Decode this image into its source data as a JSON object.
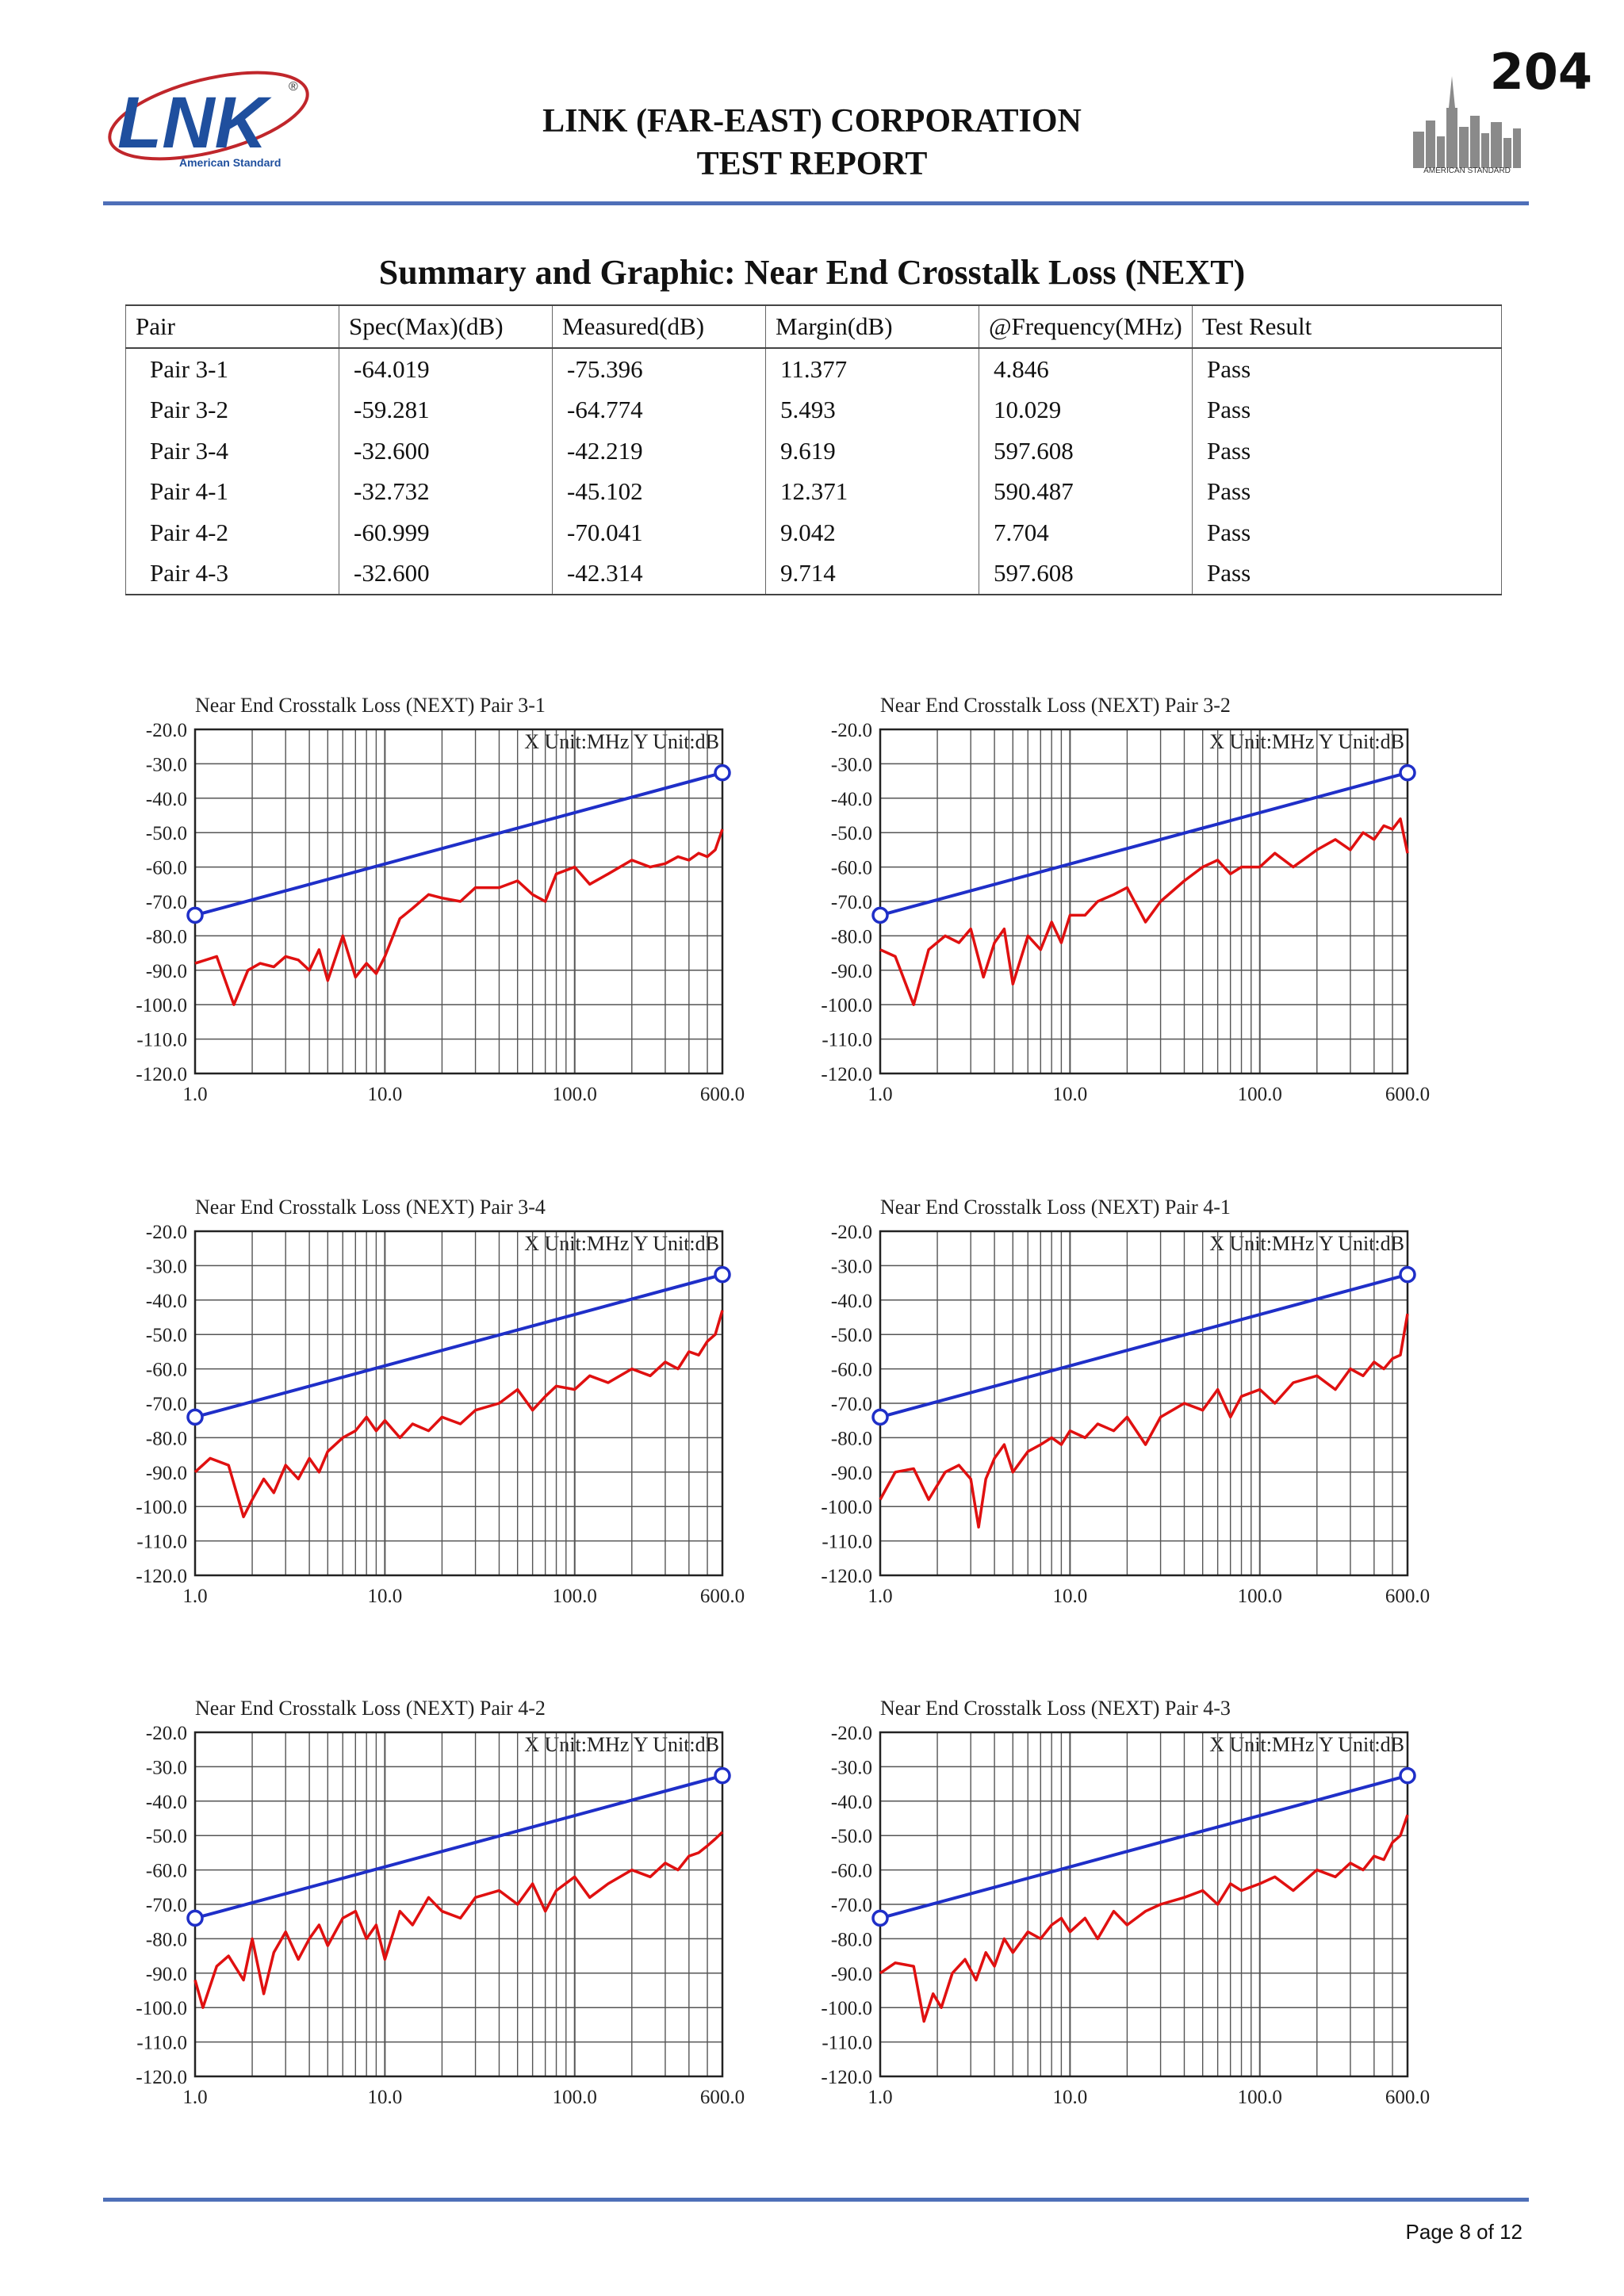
{
  "header": {
    "logo_text": "LNK",
    "logo_subtext": "American Standard",
    "company": "LINK (FAR-EAST) CORPORATION",
    "report": "TEST REPORT",
    "page_number": "204",
    "skyline_caption": "AMERICAN STANDARD"
  },
  "section_title": "Summary and Graphic: Near End Crosstalk Loss (NEXT)",
  "table": {
    "headers": [
      "Pair",
      "Spec(Max)(dB)",
      "Measured(dB)",
      "Margin(dB)",
      "@Frequency(MHz)",
      "Test Result"
    ],
    "rows": [
      [
        "Pair 3-1",
        "-64.019",
        "-75.396",
        "11.377",
        "4.846",
        "Pass"
      ],
      [
        "Pair 3-2",
        "-59.281",
        "-64.774",
        "5.493",
        "10.029",
        "Pass"
      ],
      [
        "Pair 3-4",
        "-32.600",
        "-42.219",
        "9.619",
        "597.608",
        "Pass"
      ],
      [
        "Pair 4-1",
        "-32.732",
        "-45.102",
        "12.371",
        "590.487",
        "Pass"
      ],
      [
        "Pair 4-2",
        "-60.999",
        "-70.041",
        "9.042",
        "7.704",
        "Pass"
      ],
      [
        "Pair 4-3",
        "-32.600",
        "-42.314",
        "9.714",
        "597.608",
        "Pass"
      ]
    ]
  },
  "chart_data": [
    {
      "type": "line",
      "title": "Near End Crosstalk Loss (NEXT) Pair 3-1",
      "unit_label": "X Unit:MHz Y Unit:dB",
      "x_ticks": [
        "1.0",
        "10.0",
        "100.0",
        "600.0"
      ],
      "y_ticks": [
        "-20.0",
        "-30.0",
        "-40.0",
        "-50.0",
        "-60.0",
        "-70.0",
        "-80.0",
        "-90.0",
        "-100.0",
        "-110.0",
        "-120.0"
      ],
      "xlim": [
        1,
        600
      ],
      "ylim": [
        -120,
        -20
      ],
      "x_scale": "log",
      "grid": true,
      "series": [
        {
          "color": "#1f2fc8",
          "x": [
            1,
            600
          ],
          "y": [
            -74,
            -32.6
          ]
        },
        {
          "color": "#e01010",
          "x": [
            1,
            1.3,
            1.6,
            1.9,
            2.2,
            2.6,
            3,
            3.5,
            4,
            4.5,
            5,
            6,
            7,
            8,
            9,
            10,
            12,
            14,
            17,
            20,
            25,
            30,
            40,
            50,
            60,
            70,
            80,
            100,
            120,
            150,
            200,
            250,
            300,
            350,
            400,
            450,
            500,
            550,
            600
          ],
          "y": [
            -88,
            -86,
            -100,
            -90,
            -88,
            -89,
            -86,
            -87,
            -90,
            -84,
            -93,
            -80,
            -92,
            -88,
            -91,
            -86,
            -75,
            -72,
            -68,
            -69,
            -70,
            -66,
            -66,
            -64,
            -68,
            -70,
            -62,
            -60,
            -65,
            -62,
            -58,
            -60,
            -59,
            -57,
            -58,
            -56,
            -57,
            -55,
            -49
          ]
        }
      ]
    },
    {
      "type": "line",
      "title": "Near End Crosstalk Loss (NEXT) Pair 3-2",
      "unit_label": "X Unit:MHz Y Unit:dB",
      "x_ticks": [
        "1.0",
        "10.0",
        "100.0",
        "600.0"
      ],
      "y_ticks": [
        "-20.0",
        "-30.0",
        "-40.0",
        "-50.0",
        "-60.0",
        "-70.0",
        "-80.0",
        "-90.0",
        "-100.0",
        "-110.0",
        "-120.0"
      ],
      "xlim": [
        1,
        600
      ],
      "ylim": [
        -120,
        -20
      ],
      "x_scale": "log",
      "grid": true,
      "series": [
        {
          "color": "#1f2fc8",
          "x": [
            1,
            600
          ],
          "y": [
            -74,
            -32.6
          ]
        },
        {
          "color": "#e01010",
          "x": [
            1,
            1.2,
            1.5,
            1.8,
            2.2,
            2.6,
            3,
            3.5,
            4,
            4.5,
            5,
            6,
            7,
            8,
            9,
            10,
            12,
            14,
            17,
            20,
            25,
            30,
            40,
            50,
            60,
            70,
            80,
            100,
            120,
            150,
            200,
            250,
            300,
            350,
            400,
            450,
            500,
            550,
            600
          ],
          "y": [
            -84,
            -86,
            -100,
            -84,
            -80,
            -82,
            -78,
            -92,
            -82,
            -78,
            -94,
            -80,
            -84,
            -76,
            -82,
            -74,
            -74,
            -70,
            -68,
            -66,
            -76,
            -70,
            -64,
            -60,
            -58,
            -62,
            -60,
            -60,
            -56,
            -60,
            -55,
            -52,
            -55,
            -50,
            -52,
            -48,
            -49,
            -46,
            -56
          ]
        }
      ]
    },
    {
      "type": "line",
      "title": "Near End Crosstalk Loss (NEXT) Pair 3-4",
      "unit_label": "X Unit:MHz Y Unit:dB",
      "x_ticks": [
        "1.0",
        "10.0",
        "100.0",
        "600.0"
      ],
      "y_ticks": [
        "-20.0",
        "-30.0",
        "-40.0",
        "-50.0",
        "-60.0",
        "-70.0",
        "-80.0",
        "-90.0",
        "-100.0",
        "-110.0",
        "-120.0"
      ],
      "xlim": [
        1,
        600
      ],
      "ylim": [
        -120,
        -20
      ],
      "x_scale": "log",
      "grid": true,
      "series": [
        {
          "color": "#1f2fc8",
          "x": [
            1,
            600
          ],
          "y": [
            -74,
            -32.6
          ]
        },
        {
          "color": "#e01010",
          "x": [
            1,
            1.2,
            1.5,
            1.8,
            2,
            2.3,
            2.6,
            3,
            3.5,
            4,
            4.5,
            5,
            6,
            7,
            8,
            9,
            10,
            12,
            14,
            17,
            20,
            25,
            30,
            40,
            50,
            60,
            70,
            80,
            100,
            120,
            150,
            200,
            250,
            300,
            350,
            400,
            450,
            500,
            550,
            600
          ],
          "y": [
            -90,
            -86,
            -88,
            -103,
            -98,
            -92,
            -96,
            -88,
            -92,
            -86,
            -90,
            -84,
            -80,
            -78,
            -74,
            -78,
            -75,
            -80,
            -76,
            -78,
            -74,
            -76,
            -72,
            -70,
            -66,
            -72,
            -68,
            -65,
            -66,
            -62,
            -64,
            -60,
            -62,
            -58,
            -60,
            -55,
            -56,
            -52,
            -50,
            -43
          ]
        }
      ]
    },
    {
      "type": "line",
      "title": "Near End Crosstalk Loss (NEXT) Pair 4-1",
      "unit_label": "X Unit:MHz Y Unit:dB",
      "x_ticks": [
        "1.0",
        "10.0",
        "100.0",
        "600.0"
      ],
      "y_ticks": [
        "-20.0",
        "-30.0",
        "-40.0",
        "-50.0",
        "-60.0",
        "-70.0",
        "-80.0",
        "-90.0",
        "-100.0",
        "-110.0",
        "-120.0"
      ],
      "xlim": [
        1,
        600
      ],
      "ylim": [
        -120,
        -20
      ],
      "x_scale": "log",
      "grid": true,
      "series": [
        {
          "color": "#1f2fc8",
          "x": [
            1,
            600
          ],
          "y": [
            -74,
            -32.6
          ]
        },
        {
          "color": "#e01010",
          "x": [
            1,
            1.2,
            1.5,
            1.8,
            2.2,
            2.6,
            3,
            3.3,
            3.6,
            4,
            4.5,
            5,
            6,
            7,
            8,
            9,
            10,
            12,
            14,
            17,
            20,
            25,
            30,
            40,
            50,
            60,
            70,
            80,
            100,
            120,
            150,
            200,
            250,
            300,
            350,
            400,
            450,
            500,
            550,
            600
          ],
          "y": [
            -98,
            -90,
            -89,
            -98,
            -90,
            -88,
            -92,
            -106,
            -92,
            -86,
            -82,
            -90,
            -84,
            -82,
            -80,
            -82,
            -78,
            -80,
            -76,
            -78,
            -74,
            -82,
            -74,
            -70,
            -72,
            -66,
            -74,
            -68,
            -66,
            -70,
            -64,
            -62,
            -66,
            -60,
            -62,
            -58,
            -60,
            -57,
            -56,
            -44
          ]
        }
      ]
    },
    {
      "type": "line",
      "title": "Near End Crosstalk Loss (NEXT) Pair 4-2",
      "unit_label": "X Unit:MHz Y Unit:dB",
      "x_ticks": [
        "1.0",
        "10.0",
        "100.0",
        "600.0"
      ],
      "y_ticks": [
        "-20.0",
        "-30.0",
        "-40.0",
        "-50.0",
        "-60.0",
        "-70.0",
        "-80.0",
        "-90.0",
        "-100.0",
        "-110.0",
        "-120.0"
      ],
      "xlim": [
        1,
        600
      ],
      "ylim": [
        -120,
        -20
      ],
      "x_scale": "log",
      "grid": true,
      "series": [
        {
          "color": "#1f2fc8",
          "x": [
            1,
            600
          ],
          "y": [
            -74,
            -32.6
          ]
        },
        {
          "color": "#e01010",
          "x": [
            1,
            1.1,
            1.3,
            1.5,
            1.8,
            2,
            2.3,
            2.6,
            3,
            3.5,
            4,
            4.5,
            5,
            6,
            7,
            8,
            9,
            10,
            12,
            14,
            17,
            20,
            25,
            30,
            40,
            50,
            60,
            70,
            80,
            100,
            120,
            150,
            200,
            250,
            300,
            350,
            400,
            450,
            500,
            550,
            600
          ],
          "y": [
            -92,
            -100,
            -88,
            -85,
            -92,
            -80,
            -96,
            -84,
            -78,
            -86,
            -80,
            -76,
            -82,
            -74,
            -72,
            -80,
            -76,
            -86,
            -72,
            -76,
            -68,
            -72,
            -74,
            -68,
            -66,
            -70,
            -64,
            -72,
            -66,
            -62,
            -68,
            -64,
            -60,
            -62,
            -58,
            -60,
            -56,
            -55,
            -53,
            -51,
            -49
          ]
        }
      ]
    },
    {
      "type": "line",
      "title": "Near End Crosstalk Loss (NEXT) Pair 4-3",
      "unit_label": "X Unit:MHz Y Unit:dB",
      "x_ticks": [
        "1.0",
        "10.0",
        "100.0",
        "600.0"
      ],
      "y_ticks": [
        "-20.0",
        "-30.0",
        "-40.0",
        "-50.0",
        "-60.0",
        "-70.0",
        "-80.0",
        "-90.0",
        "-100.0",
        "-110.0",
        "-120.0"
      ],
      "xlim": [
        1,
        600
      ],
      "ylim": [
        -120,
        -20
      ],
      "x_scale": "log",
      "grid": true,
      "series": [
        {
          "color": "#1f2fc8",
          "x": [
            1,
            600
          ],
          "y": [
            -74,
            -32.6
          ]
        },
        {
          "color": "#e01010",
          "x": [
            1,
            1.2,
            1.5,
            1.7,
            1.9,
            2.1,
            2.4,
            2.8,
            3.2,
            3.6,
            4,
            4.5,
            5,
            6,
            7,
            8,
            9,
            10,
            12,
            14,
            17,
            20,
            25,
            30,
            40,
            50,
            60,
            70,
            80,
            100,
            120,
            150,
            200,
            250,
            300,
            350,
            400,
            450,
            500,
            550,
            600
          ],
          "y": [
            -90,
            -87,
            -88,
            -104,
            -96,
            -100,
            -90,
            -86,
            -92,
            -84,
            -88,
            -80,
            -84,
            -78,
            -80,
            -76,
            -74,
            -78,
            -74,
            -80,
            -72,
            -76,
            -72,
            -70,
            -68,
            -66,
            -70,
            -64,
            -66,
            -64,
            -62,
            -66,
            -60,
            -62,
            -58,
            -60,
            -56,
            -57,
            -52,
            -50,
            -44
          ]
        }
      ]
    }
  ],
  "footer": {
    "page_of": "Page 8 of 12"
  }
}
